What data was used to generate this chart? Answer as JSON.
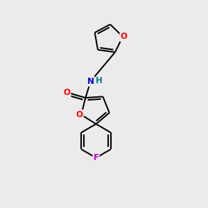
{
  "background_color": "#ebebeb",
  "bond_color": "#000000",
  "atom_colors": {
    "O": "#ff0000",
    "N": "#0000cc",
    "H": "#008080",
    "F": "#cc00cc",
    "C": "#000000"
  },
  "line_width": 1.5,
  "font_size": 8.5,
  "figsize": [
    3.0,
    3.0
  ],
  "dpi": 100
}
